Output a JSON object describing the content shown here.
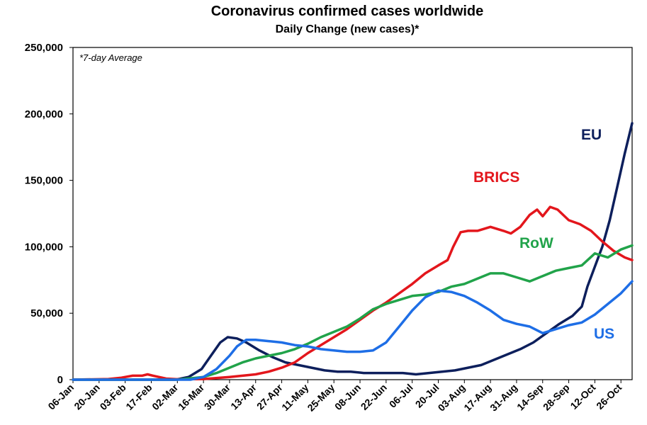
{
  "chart_data": {
    "type": "line",
    "title": "Coronavirus confirmed cases worldwide",
    "subtitle": "Daily Change (new cases)*",
    "note": "*7-day Average",
    "xlabel": "",
    "ylabel": "",
    "x_axis_type": "date",
    "x_range": [
      "2020-01-06",
      "2020-11-01"
    ],
    "ylim": [
      0,
      250000
    ],
    "y_ticks": [
      0,
      50000,
      100000,
      150000,
      200000,
      250000
    ],
    "y_tick_labels": [
      "0",
      "50,000",
      "100,000",
      "150,000",
      "200,000",
      "250,000"
    ],
    "x_ticks": [
      "2020-01-06",
      "2020-01-20",
      "2020-02-03",
      "2020-02-17",
      "2020-03-02",
      "2020-03-16",
      "2020-03-30",
      "2020-04-13",
      "2020-04-27",
      "2020-05-11",
      "2020-05-25",
      "2020-06-08",
      "2020-06-22",
      "2020-07-06",
      "2020-07-20",
      "2020-08-03",
      "2020-08-17",
      "2020-08-31",
      "2020-09-14",
      "2020-09-28",
      "2020-10-12",
      "2020-10-26"
    ],
    "x_tick_labels": [
      "06-Jan",
      "20-Jan",
      "03-Feb",
      "17-Feb",
      "02-Mar",
      "16-Mar",
      "30-Mar",
      "13-Apr",
      "27-Apr",
      "11-May",
      "25-May",
      "08-Jun",
      "22-Jun",
      "06-Jul",
      "20-Jul",
      "03-Aug",
      "17-Aug",
      "31-Aug",
      "14-Sep",
      "28-Sep",
      "12-Oct",
      "26-Oct"
    ],
    "grid": false,
    "legend": "none (series labelled directly on chart)",
    "series": [
      {
        "name": "EU",
        "color": "#0d1f5c",
        "points": [
          [
            "2020-01-06",
            0
          ],
          [
            "2020-02-20",
            0
          ],
          [
            "2020-03-01",
            0
          ],
          [
            "2020-03-08",
            2000
          ],
          [
            "2020-03-15",
            8000
          ],
          [
            "2020-03-20",
            18000
          ],
          [
            "2020-03-25",
            28000
          ],
          [
            "2020-03-29",
            32000
          ],
          [
            "2020-04-03",
            31000
          ],
          [
            "2020-04-08",
            28000
          ],
          [
            "2020-04-15",
            22000
          ],
          [
            "2020-04-22",
            17000
          ],
          [
            "2020-04-29",
            13000
          ],
          [
            "2020-05-06",
            11000
          ],
          [
            "2020-05-13",
            9000
          ],
          [
            "2020-05-20",
            7000
          ],
          [
            "2020-05-27",
            6000
          ],
          [
            "2020-06-03",
            6000
          ],
          [
            "2020-06-10",
            5000
          ],
          [
            "2020-06-17",
            5000
          ],
          [
            "2020-06-24",
            5000
          ],
          [
            "2020-07-01",
            5000
          ],
          [
            "2020-07-08",
            4000
          ],
          [
            "2020-07-15",
            5000
          ],
          [
            "2020-07-22",
            6000
          ],
          [
            "2020-07-29",
            7000
          ],
          [
            "2020-08-05",
            9000
          ],
          [
            "2020-08-12",
            11000
          ],
          [
            "2020-08-19",
            15000
          ],
          [
            "2020-08-26",
            19000
          ],
          [
            "2020-09-02",
            23000
          ],
          [
            "2020-09-09",
            28000
          ],
          [
            "2020-09-16",
            35000
          ],
          [
            "2020-09-23",
            42000
          ],
          [
            "2020-09-30",
            48000
          ],
          [
            "2020-10-05",
            55000
          ],
          [
            "2020-10-08",
            70000
          ],
          [
            "2020-10-12",
            85000
          ],
          [
            "2020-10-16",
            100000
          ],
          [
            "2020-10-20",
            120000
          ],
          [
            "2020-10-24",
            145000
          ],
          [
            "2020-10-28",
            170000
          ],
          [
            "2020-11-01",
            193000
          ]
        ]
      },
      {
        "name": "BRICS",
        "color": "#e3161c",
        "points": [
          [
            "2020-01-06",
            0
          ],
          [
            "2020-01-25",
            500
          ],
          [
            "2020-02-01",
            1500
          ],
          [
            "2020-02-07",
            3000
          ],
          [
            "2020-02-12",
            3000
          ],
          [
            "2020-02-15",
            4000
          ],
          [
            "2020-02-18",
            3000
          ],
          [
            "2020-02-25",
            800
          ],
          [
            "2020-03-02",
            300
          ],
          [
            "2020-03-16",
            500
          ],
          [
            "2020-03-30",
            2000
          ],
          [
            "2020-04-13",
            4000
          ],
          [
            "2020-04-20",
            6000
          ],
          [
            "2020-04-27",
            9000
          ],
          [
            "2020-05-04",
            13000
          ],
          [
            "2020-05-11",
            20000
          ],
          [
            "2020-05-18",
            26000
          ],
          [
            "2020-05-25",
            32000
          ],
          [
            "2020-06-01",
            38000
          ],
          [
            "2020-06-08",
            45000
          ],
          [
            "2020-06-15",
            52000
          ],
          [
            "2020-06-22",
            58000
          ],
          [
            "2020-06-29",
            65000
          ],
          [
            "2020-07-06",
            72000
          ],
          [
            "2020-07-13",
            80000
          ],
          [
            "2020-07-20",
            86000
          ],
          [
            "2020-07-25",
            90000
          ],
          [
            "2020-07-28",
            100000
          ],
          [
            "2020-08-01",
            111000
          ],
          [
            "2020-08-05",
            112000
          ],
          [
            "2020-08-10",
            112000
          ],
          [
            "2020-08-17",
            115000
          ],
          [
            "2020-08-24",
            112000
          ],
          [
            "2020-08-28",
            110000
          ],
          [
            "2020-09-02",
            115000
          ],
          [
            "2020-09-07",
            124000
          ],
          [
            "2020-09-11",
            128000
          ],
          [
            "2020-09-14",
            123000
          ],
          [
            "2020-09-18",
            130000
          ],
          [
            "2020-09-22",
            128000
          ],
          [
            "2020-09-28",
            120000
          ],
          [
            "2020-10-04",
            117000
          ],
          [
            "2020-10-10",
            112000
          ],
          [
            "2020-10-16",
            104000
          ],
          [
            "2020-10-22",
            97000
          ],
          [
            "2020-10-28",
            92000
          ],
          [
            "2020-11-01",
            90000
          ]
        ]
      },
      {
        "name": "RoW",
        "color": "#21a34a",
        "points": [
          [
            "2020-01-06",
            0
          ],
          [
            "2020-03-02",
            0
          ],
          [
            "2020-03-16",
            2000
          ],
          [
            "2020-03-23",
            5000
          ],
          [
            "2020-03-30",
            9000
          ],
          [
            "2020-04-06",
            13000
          ],
          [
            "2020-04-13",
            16000
          ],
          [
            "2020-04-20",
            18000
          ],
          [
            "2020-04-27",
            20000
          ],
          [
            "2020-05-04",
            23000
          ],
          [
            "2020-05-11",
            27000
          ],
          [
            "2020-05-18",
            32000
          ],
          [
            "2020-05-25",
            36000
          ],
          [
            "2020-06-01",
            40000
          ],
          [
            "2020-06-08",
            46000
          ],
          [
            "2020-06-15",
            53000
          ],
          [
            "2020-06-22",
            57000
          ],
          [
            "2020-06-29",
            60000
          ],
          [
            "2020-07-06",
            63000
          ],
          [
            "2020-07-13",
            64000
          ],
          [
            "2020-07-20",
            66000
          ],
          [
            "2020-07-27",
            70000
          ],
          [
            "2020-08-03",
            72000
          ],
          [
            "2020-08-10",
            76000
          ],
          [
            "2020-08-17",
            80000
          ],
          [
            "2020-08-24",
            80000
          ],
          [
            "2020-08-31",
            77000
          ],
          [
            "2020-09-07",
            74000
          ],
          [
            "2020-09-14",
            78000
          ],
          [
            "2020-09-21",
            82000
          ],
          [
            "2020-09-28",
            84000
          ],
          [
            "2020-10-05",
            86000
          ],
          [
            "2020-10-12",
            95000
          ],
          [
            "2020-10-19",
            92000
          ],
          [
            "2020-10-26",
            98000
          ],
          [
            "2020-11-01",
            101000
          ]
        ]
      },
      {
        "name": "US",
        "color": "#1e6ee6",
        "points": [
          [
            "2020-01-06",
            0
          ],
          [
            "2020-03-09",
            0
          ],
          [
            "2020-03-16",
            2000
          ],
          [
            "2020-03-23",
            8000
          ],
          [
            "2020-03-30",
            18000
          ],
          [
            "2020-04-03",
            25000
          ],
          [
            "2020-04-08",
            30000
          ],
          [
            "2020-04-13",
            30000
          ],
          [
            "2020-04-20",
            29000
          ],
          [
            "2020-04-27",
            28000
          ],
          [
            "2020-05-04",
            26000
          ],
          [
            "2020-05-11",
            25000
          ],
          [
            "2020-05-18",
            23000
          ],
          [
            "2020-05-25",
            22000
          ],
          [
            "2020-06-01",
            21000
          ],
          [
            "2020-06-08",
            21000
          ],
          [
            "2020-06-15",
            22000
          ],
          [
            "2020-06-22",
            28000
          ],
          [
            "2020-06-29",
            40000
          ],
          [
            "2020-07-06",
            52000
          ],
          [
            "2020-07-13",
            62000
          ],
          [
            "2020-07-20",
            67000
          ],
          [
            "2020-07-27",
            66000
          ],
          [
            "2020-08-03",
            63000
          ],
          [
            "2020-08-10",
            58000
          ],
          [
            "2020-08-17",
            52000
          ],
          [
            "2020-08-24",
            45000
          ],
          [
            "2020-08-31",
            42000
          ],
          [
            "2020-09-07",
            40000
          ],
          [
            "2020-09-14",
            35000
          ],
          [
            "2020-09-21",
            38000
          ],
          [
            "2020-09-28",
            41000
          ],
          [
            "2020-10-05",
            43000
          ],
          [
            "2020-10-12",
            49000
          ],
          [
            "2020-10-19",
            57000
          ],
          [
            "2020-10-26",
            65000
          ],
          [
            "2020-11-01",
            74000
          ]
        ]
      }
    ]
  }
}
